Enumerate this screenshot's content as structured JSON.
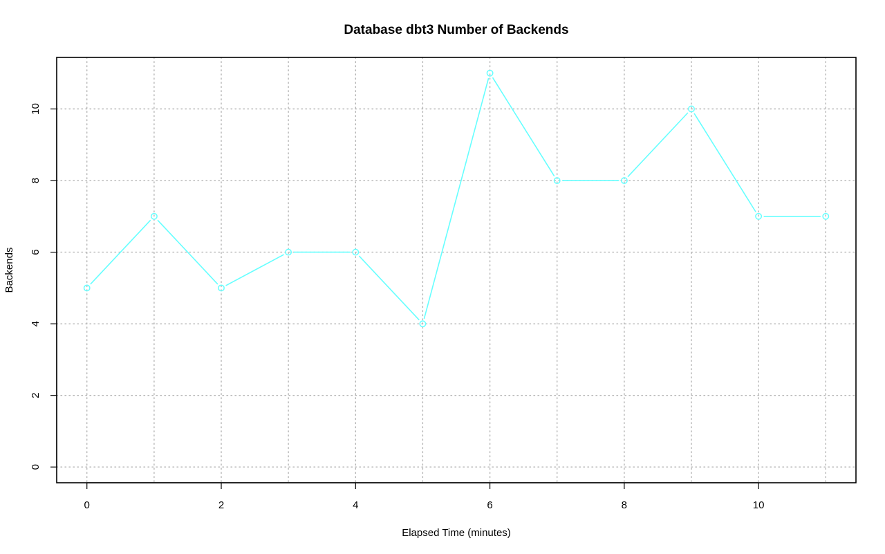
{
  "colors": {
    "series": "#66ffff",
    "grid": "#b4b4b4",
    "axis": "#000000",
    "background": "#ffffff"
  },
  "chart_data": {
    "type": "line",
    "title": "Database dbt3 Number of Backends",
    "xlabel": "Elapsed Time (minutes)",
    "ylabel": "Backends",
    "xlim": [
      -0.45,
      11.45
    ],
    "ylim": [
      -0.44,
      11.44
    ],
    "x_ticks": [
      0,
      2,
      4,
      6,
      8,
      10
    ],
    "y_ticks": [
      0,
      2,
      4,
      6,
      8,
      10
    ],
    "grid": true,
    "grid_x": [
      0,
      1,
      2,
      3,
      4,
      5,
      6,
      7,
      8,
      9,
      10,
      11
    ],
    "grid_y": [
      0,
      2,
      4,
      6,
      8,
      10
    ],
    "markers": "open-circle",
    "series": [
      {
        "x": [
          0,
          1,
          2,
          3,
          4,
          5,
          6,
          7,
          8,
          9,
          10,
          11
        ],
        "values": [
          5,
          7,
          5,
          6,
          6,
          4,
          11,
          8,
          8,
          10,
          7,
          7
        ]
      }
    ]
  }
}
